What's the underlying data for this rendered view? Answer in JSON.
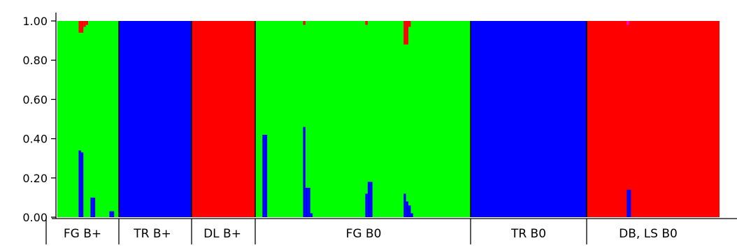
{
  "chart_data": {
    "type": "bar",
    "subtype": "stacked-100-percent-admixture",
    "ylim": [
      0,
      1
    ],
    "yticks": [
      "0.00",
      "0.20",
      "0.40",
      "0.60",
      "0.80",
      "1.00"
    ],
    "colors": {
      "cluster_green": "#00ff00",
      "cluster_blue": "#0000ff",
      "cluster_red": "#ff0000",
      "cluster_magenta": "#ff00ff"
    },
    "groups": [
      {
        "label": "FG B+",
        "dominant": "cluster_green",
        "n_individuals": 26
      },
      {
        "label": "TR B+",
        "dominant": "cluster_blue",
        "n_individuals": 30
      },
      {
        "label": "DL B+",
        "dominant": "cluster_red",
        "n_individuals": 27
      },
      {
        "label": "FG B0",
        "dominant": "cluster_green",
        "n_individuals": 90
      },
      {
        "label": "TR B0",
        "dominant": "cluster_blue",
        "n_individuals": 48
      },
      {
        "label": "DB, LS B0",
        "dominant": "cluster_red",
        "n_individuals": 63
      }
    ],
    "admixture": [
      {
        "group": 0,
        "index": 9,
        "cluster_blue": 0.34
      },
      {
        "group": 0,
        "index": 10,
        "cluster_blue": 0.33
      },
      {
        "group": 0,
        "index": 14,
        "cluster_blue": 0.1
      },
      {
        "group": 0,
        "index": 15,
        "cluster_blue": 0.1
      },
      {
        "group": 0,
        "index": 22,
        "cluster_blue": 0.03
      },
      {
        "group": 0,
        "index": 23,
        "cluster_blue": 0.03
      },
      {
        "group": 0,
        "index": 9,
        "cluster_red": 0.06
      },
      {
        "group": 0,
        "index": 10,
        "cluster_red": 0.06
      },
      {
        "group": 0,
        "index": 11,
        "cluster_red": 0.03
      },
      {
        "group": 0,
        "index": 12,
        "cluster_red": 0.02
      },
      {
        "group": 3,
        "index": 3,
        "cluster_blue": 0.42
      },
      {
        "group": 3,
        "index": 4,
        "cluster_blue": 0.42
      },
      {
        "group": 3,
        "index": 20,
        "cluster_blue": 0.46
      },
      {
        "group": 3,
        "index": 21,
        "cluster_blue": 0.15
      },
      {
        "group": 3,
        "index": 22,
        "cluster_blue": 0.15
      },
      {
        "group": 3,
        "index": 23,
        "cluster_blue": 0.02
      },
      {
        "group": 3,
        "index": 46,
        "cluster_blue": 0.12
      },
      {
        "group": 3,
        "index": 47,
        "cluster_blue": 0.18
      },
      {
        "group": 3,
        "index": 48,
        "cluster_blue": 0.18
      },
      {
        "group": 3,
        "index": 62,
        "cluster_blue": 0.12
      },
      {
        "group": 3,
        "index": 63,
        "cluster_blue": 0.08
      },
      {
        "group": 3,
        "index": 64,
        "cluster_blue": 0.06
      },
      {
        "group": 3,
        "index": 65,
        "cluster_blue": 0.02
      },
      {
        "group": 3,
        "index": 20,
        "cluster_red": 0.02
      },
      {
        "group": 3,
        "index": 46,
        "cluster_red": 0.02
      },
      {
        "group": 3,
        "index": 62,
        "cluster_red": 0.12
      },
      {
        "group": 3,
        "index": 63,
        "cluster_red": 0.12
      },
      {
        "group": 3,
        "index": 64,
        "cluster_red": 0.03
      },
      {
        "group": 5,
        "index": 19,
        "cluster_blue": 0.14
      },
      {
        "group": 5,
        "index": 20,
        "cluster_blue": 0.14
      },
      {
        "group": 5,
        "index": 19,
        "cluster_magenta": 0.02
      }
    ]
  }
}
